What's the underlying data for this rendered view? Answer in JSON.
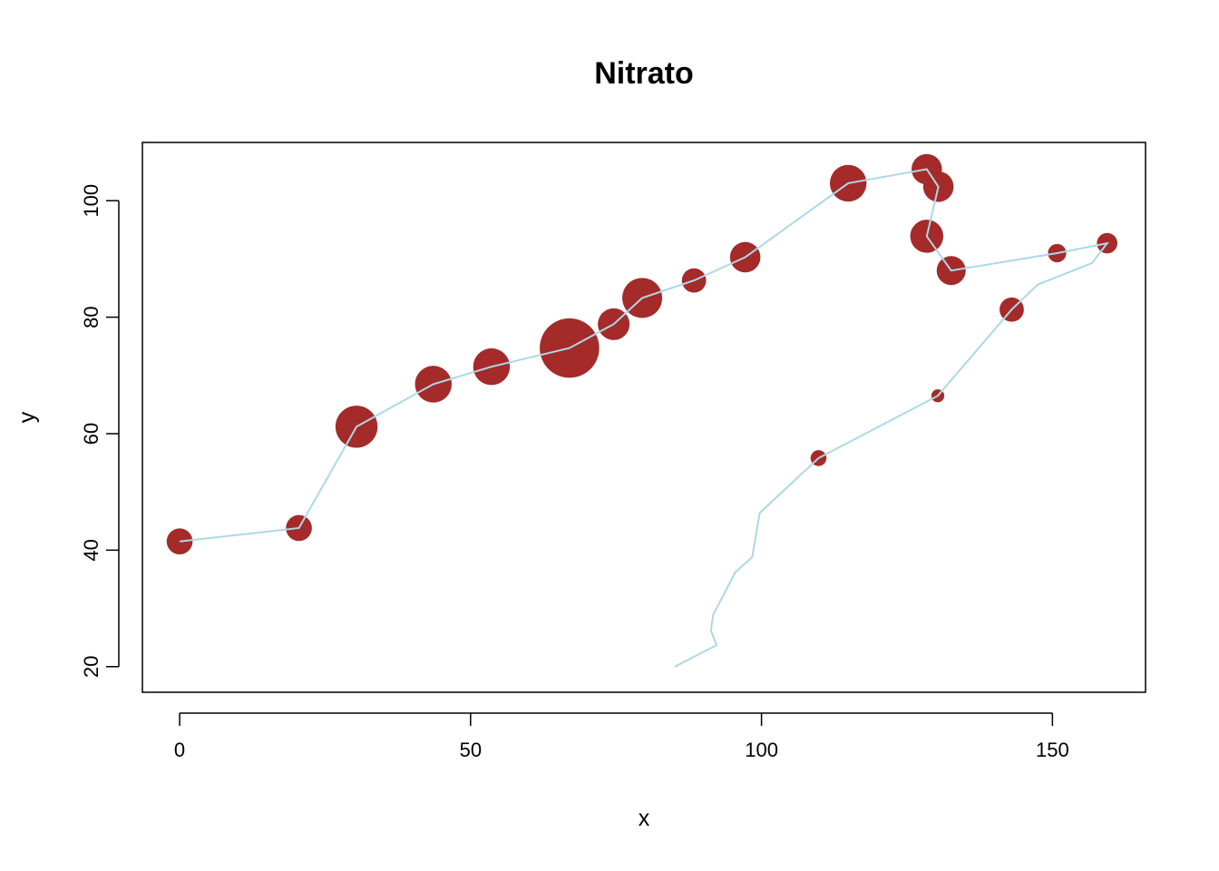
{
  "chart_data": {
    "type": "scatter",
    "title": "Nitrato",
    "xlabel": "x",
    "ylabel": "y",
    "xlim": [
      -6.4,
      166
    ],
    "ylim": [
      15.6,
      110
    ],
    "x_ticks": [
      0,
      50,
      100,
      150
    ],
    "y_ticks": [
      20,
      40,
      60,
      80,
      100
    ],
    "grid": false,
    "colors": {
      "line": "#add8e6",
      "points": "#a52a2a"
    },
    "path": [
      [
        0,
        41.5
      ],
      [
        20.5,
        43.8
      ],
      [
        30.4,
        61.2
      ],
      [
        43.6,
        68.5
      ],
      [
        53.6,
        71.5
      ],
      [
        67.0,
        74.7
      ],
      [
        74.6,
        78.8
      ],
      [
        79.5,
        83.3
      ],
      [
        88.4,
        86.3
      ],
      [
        97.2,
        90.3
      ],
      [
        114.9,
        103.0
      ],
      [
        128.4,
        105.4
      ],
      [
        130.4,
        102.4
      ],
      [
        128.4,
        93.9
      ],
      [
        132.6,
        88.0
      ],
      [
        150.8,
        91.0
      ],
      [
        159.4,
        92.7
      ],
      [
        156.8,
        89.3
      ],
      [
        147.5,
        85.6
      ],
      [
        143.0,
        81.3
      ],
      [
        130.3,
        66.5
      ],
      [
        109.8,
        55.8
      ],
      [
        99.7,
        46.4
      ],
      [
        98.4,
        38.8
      ],
      [
        95.5,
        36.2
      ],
      [
        91.7,
        28.9
      ],
      [
        91.3,
        26.2
      ],
      [
        92.3,
        23.7
      ],
      [
        85.1,
        20.0
      ]
    ],
    "points": [
      {
        "x": 0,
        "y": 41.5,
        "value": 0.8
      },
      {
        "x": 20.5,
        "y": 43.8,
        "value": 0.8
      },
      {
        "x": 30.4,
        "y": 61.2,
        "value": 2.1
      },
      {
        "x": 43.6,
        "y": 68.5,
        "value": 1.6
      },
      {
        "x": 53.6,
        "y": 71.5,
        "value": 1.6
      },
      {
        "x": 67.0,
        "y": 74.7,
        "value": 4.2
      },
      {
        "x": 74.6,
        "y": 78.8,
        "value": 1.2
      },
      {
        "x": 79.5,
        "y": 83.3,
        "value": 1.9
      },
      {
        "x": 88.4,
        "y": 86.3,
        "value": 0.7
      },
      {
        "x": 97.2,
        "y": 90.3,
        "value": 1.1
      },
      {
        "x": 114.9,
        "y": 103.0,
        "value": 1.6
      },
      {
        "x": 128.4,
        "y": 105.4,
        "value": 1.1
      },
      {
        "x": 130.4,
        "y": 102.4,
        "value": 1.1
      },
      {
        "x": 128.4,
        "y": 93.9,
        "value": 1.3
      },
      {
        "x": 132.6,
        "y": 88.0,
        "value": 1.0
      },
      {
        "x": 150.8,
        "y": 91.0,
        "value": 0.4
      },
      {
        "x": 159.4,
        "y": 92.7,
        "value": 0.5
      },
      {
        "x": 143.0,
        "y": 81.3,
        "value": 0.7
      },
      {
        "x": 130.3,
        "y": 66.5,
        "value": 0.2
      },
      {
        "x": 109.8,
        "y": 55.8,
        "value": 0.3
      }
    ]
  }
}
